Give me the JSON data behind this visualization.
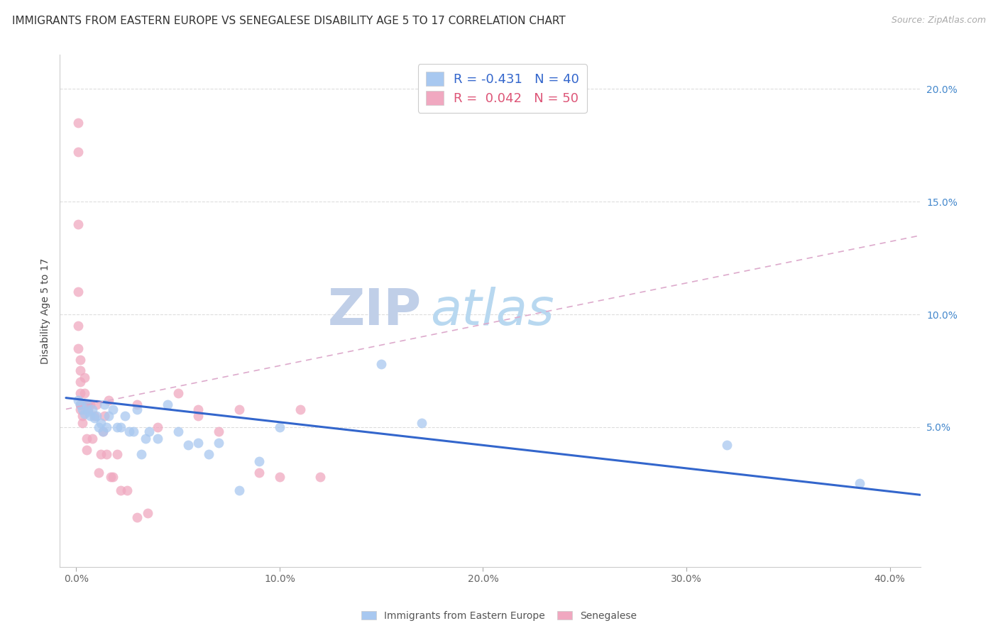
{
  "title": "IMMIGRANTS FROM EASTERN EUROPE VS SENEGALESE DISABILITY AGE 5 TO 17 CORRELATION CHART",
  "source": "Source: ZipAtlas.com",
  "ylabel": "Disability Age 5 to 17",
  "xlabel_ticks": [
    "0.0%",
    "10.0%",
    "20.0%",
    "30.0%",
    "40.0%"
  ],
  "xlabel_vals": [
    0.0,
    0.1,
    0.2,
    0.3,
    0.4
  ],
  "ylabel_ticks": [
    "5.0%",
    "10.0%",
    "15.0%",
    "20.0%"
  ],
  "ylabel_vals": [
    0.05,
    0.1,
    0.15,
    0.2
  ],
  "xlim": [
    -0.008,
    0.415
  ],
  "ylim": [
    -0.012,
    0.215
  ],
  "blue_color": "#a8c8f0",
  "pink_color": "#f0a8c0",
  "blue_line_color": "#3366cc",
  "pink_line_color": "#dd5577",
  "pink_dash_color": "#ddaacc",
  "grid_color": "#dddddd",
  "watermark_zip": "ZIP",
  "watermark_atlas": "atlas",
  "legend_blue_label": "R = -0.431   N = 40",
  "legend_pink_label": "R =  0.042   N = 50",
  "blue_x": [
    0.001,
    0.002,
    0.003,
    0.004,
    0.005,
    0.006,
    0.007,
    0.008,
    0.009,
    0.01,
    0.011,
    0.012,
    0.013,
    0.014,
    0.015,
    0.016,
    0.018,
    0.02,
    0.022,
    0.024,
    0.026,
    0.028,
    0.03,
    0.032,
    0.034,
    0.036,
    0.04,
    0.045,
    0.05,
    0.055,
    0.06,
    0.065,
    0.07,
    0.08,
    0.09,
    0.1,
    0.15,
    0.17,
    0.32,
    0.385
  ],
  "blue_y": [
    0.062,
    0.06,
    0.058,
    0.056,
    0.06,
    0.057,
    0.055,
    0.058,
    0.054,
    0.055,
    0.05,
    0.052,
    0.048,
    0.06,
    0.05,
    0.055,
    0.058,
    0.05,
    0.05,
    0.055,
    0.048,
    0.048,
    0.058,
    0.038,
    0.045,
    0.048,
    0.045,
    0.06,
    0.048,
    0.042,
    0.043,
    0.038,
    0.043,
    0.022,
    0.035,
    0.05,
    0.078,
    0.052,
    0.042,
    0.025
  ],
  "pink_x": [
    0.001,
    0.001,
    0.001,
    0.001,
    0.001,
    0.001,
    0.002,
    0.002,
    0.002,
    0.002,
    0.002,
    0.002,
    0.003,
    0.003,
    0.003,
    0.004,
    0.004,
    0.005,
    0.005,
    0.006,
    0.006,
    0.007,
    0.008,
    0.009,
    0.01,
    0.011,
    0.012,
    0.013,
    0.014,
    0.015,
    0.016,
    0.017,
    0.018,
    0.02,
    0.022,
    0.025,
    0.03,
    0.035,
    0.04,
    0.05,
    0.06,
    0.07,
    0.08,
    0.09,
    0.1,
    0.11,
    0.12,
    0.06,
    0.03,
    0.005
  ],
  "pink_y": [
    0.185,
    0.172,
    0.14,
    0.11,
    0.095,
    0.085,
    0.08,
    0.075,
    0.07,
    0.065,
    0.06,
    0.058,
    0.06,
    0.055,
    0.052,
    0.065,
    0.072,
    0.06,
    0.045,
    0.06,
    0.058,
    0.06,
    0.045,
    0.055,
    0.06,
    0.03,
    0.038,
    0.048,
    0.055,
    0.038,
    0.062,
    0.028,
    0.028,
    0.038,
    0.022,
    0.022,
    0.06,
    0.012,
    0.05,
    0.065,
    0.055,
    0.048,
    0.058,
    0.03,
    0.028,
    0.058,
    0.028,
    0.058,
    0.01,
    0.04
  ],
  "blue_trend_x": [
    -0.005,
    0.415
  ],
  "blue_trend_y_start": 0.063,
  "blue_trend_y_end": 0.02,
  "pink_trend_x": [
    -0.005,
    0.415
  ],
  "pink_trend_y_start": 0.058,
  "pink_trend_y_end": 0.135,
  "title_fontsize": 11,
  "axis_label_fontsize": 10,
  "tick_fontsize": 10,
  "legend_fontsize": 13,
  "source_fontsize": 9,
  "watermark_fontsize_zip": 52,
  "watermark_fontsize_atlas": 52,
  "watermark_color_zip": "#c0cfe8",
  "watermark_color_atlas": "#b8d8f0",
  "right_tick_color": "#4488cc",
  "scatter_size": 100,
  "scatter_alpha": 0.75
}
